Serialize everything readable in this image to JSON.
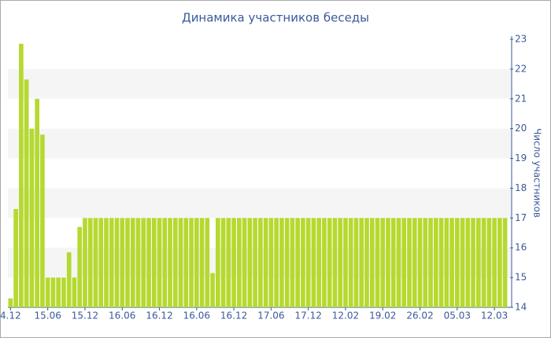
{
  "chart_data": {
    "type": "bar",
    "title": "Динамика участников беседы",
    "y_axis_label": "Число участников",
    "categories": [
      "4.12",
      null,
      null,
      null,
      null,
      null,
      null,
      "15.06",
      null,
      null,
      null,
      null,
      null,
      null,
      "15.12",
      null,
      null,
      null,
      null,
      null,
      null,
      "16.06",
      null,
      null,
      null,
      null,
      null,
      null,
      "16.12",
      null,
      null,
      null,
      null,
      null,
      null,
      "16.06",
      null,
      null,
      null,
      null,
      null,
      null,
      "16.12",
      null,
      null,
      null,
      null,
      null,
      null,
      "17.06",
      null,
      null,
      null,
      null,
      null,
      null,
      "17.12",
      null,
      null,
      null,
      null,
      null,
      null,
      "12.02",
      null,
      null,
      null,
      null,
      null,
      null,
      "19.02",
      null,
      null,
      null,
      null,
      null,
      null,
      "26.02",
      null,
      null,
      null,
      null,
      null,
      null,
      "05.03",
      null,
      null,
      null,
      null,
      null,
      null,
      "12.03",
      null,
      null
    ],
    "values": [
      14.3,
      17.3,
      22.85,
      21.65,
      20,
      21,
      19.8,
      15,
      15,
      15,
      15,
      15.85,
      15,
      16.7,
      17,
      17,
      17,
      17,
      17,
      17,
      17,
      17,
      17,
      17,
      17,
      17,
      17,
      17,
      17,
      17,
      17,
      17,
      17,
      17,
      17,
      17,
      17,
      17,
      15.15,
      17,
      17,
      17,
      17,
      17,
      17,
      17,
      17,
      17,
      17,
      17,
      17,
      17,
      17,
      17,
      17,
      17,
      17,
      17,
      17,
      17,
      17,
      17,
      17,
      17,
      17,
      17,
      17,
      17,
      17,
      17,
      17,
      17,
      17,
      17,
      17,
      17,
      17,
      17,
      17,
      17,
      17,
      17,
      17,
      17,
      17,
      17,
      17,
      17,
      17,
      17,
      17,
      17,
      17,
      17
    ],
    "color": "#b5d930",
    "ylim": [
      14,
      23
    ],
    "yticks": [
      14,
      15,
      16,
      17,
      18,
      19,
      20,
      21,
      22,
      23
    ],
    "grid": true,
    "y_axis_side": "right"
  }
}
